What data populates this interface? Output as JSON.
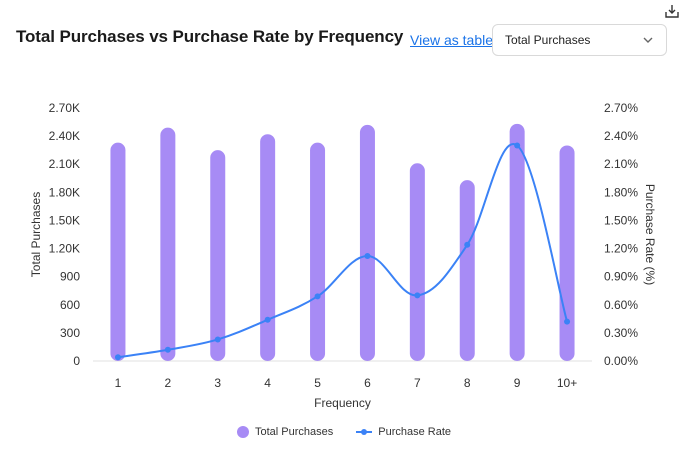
{
  "header": {
    "title": "Total Purchases vs Purchase Rate by Frequency",
    "view_link": "View as table",
    "select_value": "Total Purchases"
  },
  "icons": {
    "download": "download-icon",
    "chevron": "chevron-down-icon"
  },
  "colors": {
    "bar": "#a78bf5",
    "line": "#3b82f6"
  },
  "chart_data": {
    "type": "bar",
    "xlabel": "Frequency",
    "ylabel_left": "Total Purchases",
    "ylabel_right": "Purchase Rate (%)",
    "categories": [
      "1",
      "2",
      "3",
      "4",
      "5",
      "6",
      "7",
      "8",
      "9",
      "10+"
    ],
    "left_axis": {
      "ylim": [
        0,
        2700
      ],
      "ticks": [
        "0",
        "300",
        "600",
        "900",
        "1.20K",
        "1.50K",
        "1.80K",
        "2.10K",
        "2.40K",
        "2.70K"
      ]
    },
    "right_axis": {
      "ylim": [
        0,
        2.7
      ],
      "ticks": [
        "0.00%",
        "0.30%",
        "0.60%",
        "0.90%",
        "1.20%",
        "1.50%",
        "1.80%",
        "2.10%",
        "2.40%",
        "2.70%"
      ]
    },
    "series": [
      {
        "name": "Total Purchases",
        "type": "bar",
        "axis": "left",
        "values": [
          2330,
          2490,
          2250,
          2420,
          2330,
          2520,
          2110,
          1930,
          2530,
          2300
        ]
      },
      {
        "name": "Purchase Rate",
        "type": "line",
        "axis": "right",
        "values": [
          0.04,
          0.12,
          0.23,
          0.44,
          0.69,
          1.12,
          0.7,
          1.24,
          2.3,
          0.42
        ]
      }
    ],
    "legend": "bottom-center",
    "grid": false
  }
}
